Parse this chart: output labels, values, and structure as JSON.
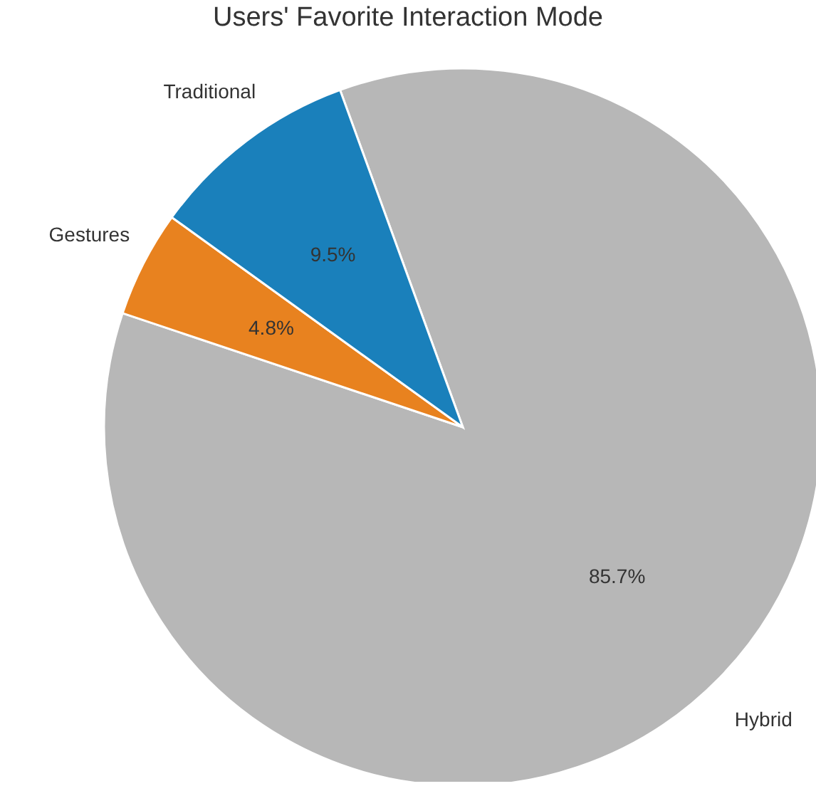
{
  "chart_data": {
    "type": "pie",
    "title": "Users' Favorite Interaction Mode",
    "categories": [
      "Hybrid",
      "Gestures",
      "Traditional"
    ],
    "values": [
      85.7,
      4.8,
      9.5
    ],
    "value_labels": [
      "85.7%",
      "4.8%",
      "9.5%"
    ],
    "colors": [
      "#b7b7b7",
      "#e8821f",
      "#1a80bb"
    ],
    "legend": false
  }
}
